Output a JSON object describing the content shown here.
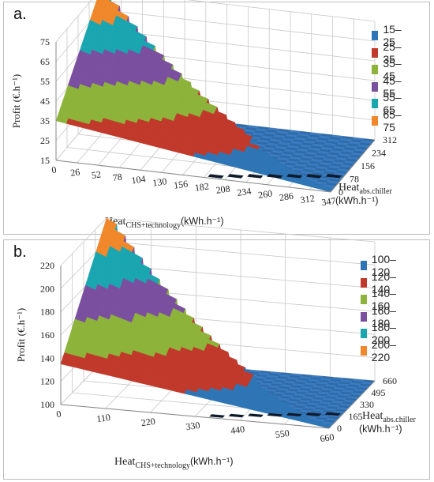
{
  "panels": [
    {
      "label": "a.",
      "ylabel": "Profit (€.h⁻¹)",
      "xlabel": {
        "main": "Heat",
        "sub": "CHS+technology",
        "unit": "(kWh.h⁻¹)"
      },
      "zlabel": {
        "main": "Heat",
        "sub": "abs.chiller",
        "unit": "(kWh.h⁻¹)"
      },
      "legend": [
        {
          "label": "15–25",
          "color": "#2e75b6"
        },
        {
          "label": "25–35",
          "color": "#c0392b"
        },
        {
          "label": "35–45",
          "color": "#8db33a"
        },
        {
          "label": "45–55",
          "color": "#7b4fa0"
        },
        {
          "label": "55–65",
          "color": "#1aa6b0"
        },
        {
          "label": "65–75",
          "color": "#f0882b"
        }
      ]
    },
    {
      "label": "b.",
      "ylabel": "Profit (€.h⁻¹)",
      "xlabel": {
        "main": "Heat",
        "sub": "CHS+technology",
        "unit": "(kWh.h⁻¹)"
      },
      "zlabel": {
        "main": "Heat",
        "sub": "abs.chiller",
        "unit": "(kWh.h⁻¹)"
      },
      "legend": [
        {
          "label": "100–120",
          "color": "#2e75b6"
        },
        {
          "label": "120–140",
          "color": "#c0392b"
        },
        {
          "label": "140–160",
          "color": "#8db33a"
        },
        {
          "label": "160–180",
          "color": "#7b4fa0"
        },
        {
          "label": "180–200",
          "color": "#1aa6b0"
        },
        {
          "label": "200–220",
          "color": "#f0882b"
        }
      ]
    }
  ],
  "chart_data": [
    {
      "type": "surface",
      "panel": "a.",
      "x_ticks": [
        "0",
        "26",
        "52",
        "78",
        "104",
        "130",
        "156",
        "182",
        "208",
        "234",
        "260",
        "286",
        "312",
        "347"
      ],
      "z_ticks": [
        "0",
        "78",
        "156",
        "234",
        "312"
      ],
      "y_ticks": [
        "15",
        "25",
        "35",
        "45",
        "55",
        "65",
        "75"
      ],
      "ylim": [
        15,
        75
      ],
      "bands": [
        "15–25",
        "25–35",
        "35–45",
        "45–55",
        "55–65",
        "65–75"
      ],
      "surface_corners": {
        "x0_z0": 35,
        "x_max_z0": 15,
        "x0_z_max": 75,
        "x_max_z_max": 15
      }
    },
    {
      "type": "surface",
      "panel": "b.",
      "x_ticks": [
        "0",
        "110",
        "220",
        "330",
        "440",
        "550",
        "660"
      ],
      "z_ticks": [
        "0",
        "165",
        "330",
        "495",
        "660"
      ],
      "y_ticks": [
        "100",
        "120",
        "140",
        "160",
        "180",
        "200",
        "220"
      ],
      "ylim": [
        100,
        220
      ],
      "bands": [
        "100–120",
        "120–140",
        "140–160",
        "160–180",
        "180–200",
        "200–220"
      ],
      "surface_corners": {
        "x0_z0": 135,
        "x_max_z0": 100,
        "x0_z_max": 220,
        "x_max_z_max": 100
      }
    }
  ]
}
